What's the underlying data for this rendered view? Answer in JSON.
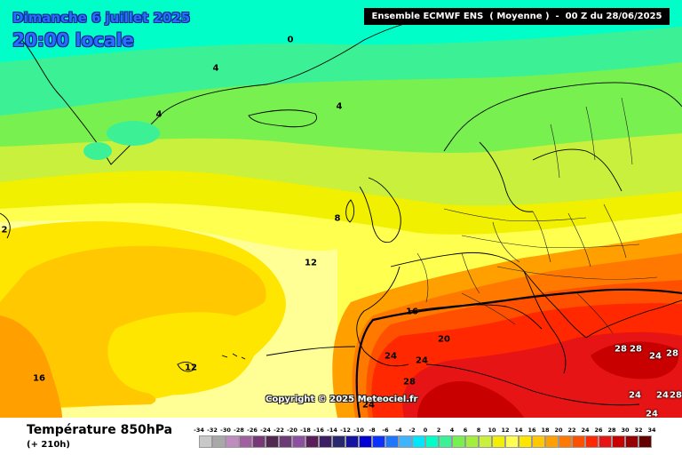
{
  "header": {
    "date_line": "Dimanche 6 juillet 2025",
    "time_line": "20:00 locale",
    "run_info": "Ensemble ECMWF ENS  ( Moyenne )  -  00 Z du 28/06/2025"
  },
  "watermark": "Copyright © 2025 Meteociel.fr",
  "contour_labels": [
    "0",
    "4",
    "4",
    "4",
    "8",
    "12",
    "12",
    "16",
    "16",
    "20",
    "24",
    "24",
    "28",
    "24",
    "28",
    "28",
    "24",
    "28",
    "24",
    "24",
    "28",
    "24",
    "2"
  ],
  "legend": {
    "title": "Température 850hPa",
    "subtitle": "(+ 210h)",
    "scale_values": [
      "-34",
      "-32",
      "-30",
      "-28",
      "-26",
      "-24",
      "-22",
      "-20",
      "-18",
      "-16",
      "-14",
      "-12",
      "-10",
      "-8",
      "-6",
      "-4",
      "-2",
      "0",
      "2",
      "4",
      "6",
      "8",
      "10",
      "12",
      "14",
      "16",
      "18",
      "20",
      "22",
      "24",
      "26",
      "28",
      "30",
      "32",
      "34"
    ],
    "scale_colors": [
      "#c8c8c8",
      "#a8a8a8",
      "#c08cc0",
      "#a060a0",
      "#783878",
      "#502850",
      "#6c3c78",
      "#8c50a0",
      "#5a1e5a",
      "#3c1e64",
      "#28286e",
      "#1414a0",
      "#0000d2",
      "#0a32ff",
      "#1e78ff",
      "#3cb4ff",
      "#00e6ff",
      "#00ffc8",
      "#3cf096",
      "#78f050",
      "#a0f03c",
      "#c8f03c",
      "#f0f000",
      "#ffff50",
      "#ffe600",
      "#ffc800",
      "#ffa000",
      "#ff7800",
      "#ff5000",
      "#ff2800",
      "#e61414",
      "#c80000",
      "#960000",
      "#640000",
      "#1e0000"
    ]
  }
}
